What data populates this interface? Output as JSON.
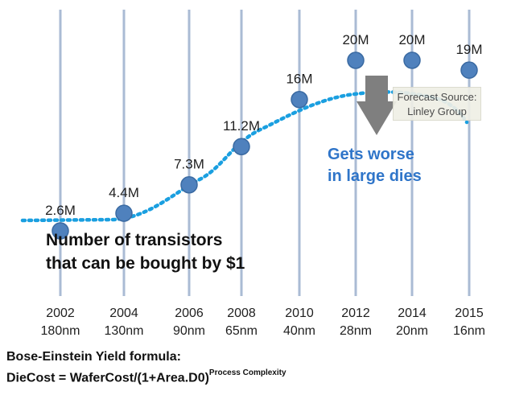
{
  "chart_data": {
    "type": "scatter",
    "categories": [
      "2002\n180nm",
      "2004\n130nm",
      "2006\n90nm",
      "2008\n65nm",
      "2010\n40nm",
      "2012\n28nm",
      "2014\n20nm",
      "2015\n16nm"
    ],
    "years": [
      "2002",
      "2004",
      "2006",
      "2008",
      "2010",
      "2012",
      "2014",
      "2015"
    ],
    "nodes": [
      "180nm",
      "130nm",
      "90nm",
      "65nm",
      "40nm",
      "28nm",
      "20nm",
      "16nm"
    ],
    "values": [
      2.6,
      4.4,
      7.3,
      11.2,
      16,
      20,
      20,
      19
    ],
    "data_labels": [
      "2.6M",
      "4.4M",
      "7.3M",
      "11.2M",
      "16M",
      "20M",
      "20M",
      "19M"
    ],
    "unit": "M transistors per $1",
    "trend_style": "dotted",
    "colors": {
      "points": "#4f81bd",
      "trend": "#1a9fe0",
      "callout": "#2f75c9",
      "arrow": "#7f7f7f",
      "gridlines": "#aabbd4"
    },
    "annotations": {
      "gets_worse": "Gets worse\nin large dies",
      "number_of_transistors": "Number of transistors\nthat can be bought by $1",
      "forecast_source": "Forecast Source:\nLinley Group"
    }
  },
  "formula": {
    "title": "Bose-Einstein Yield formula:",
    "main": "DieCost = WaferCost/(1+Area.D0)",
    "exponent": "Process Complexity"
  }
}
